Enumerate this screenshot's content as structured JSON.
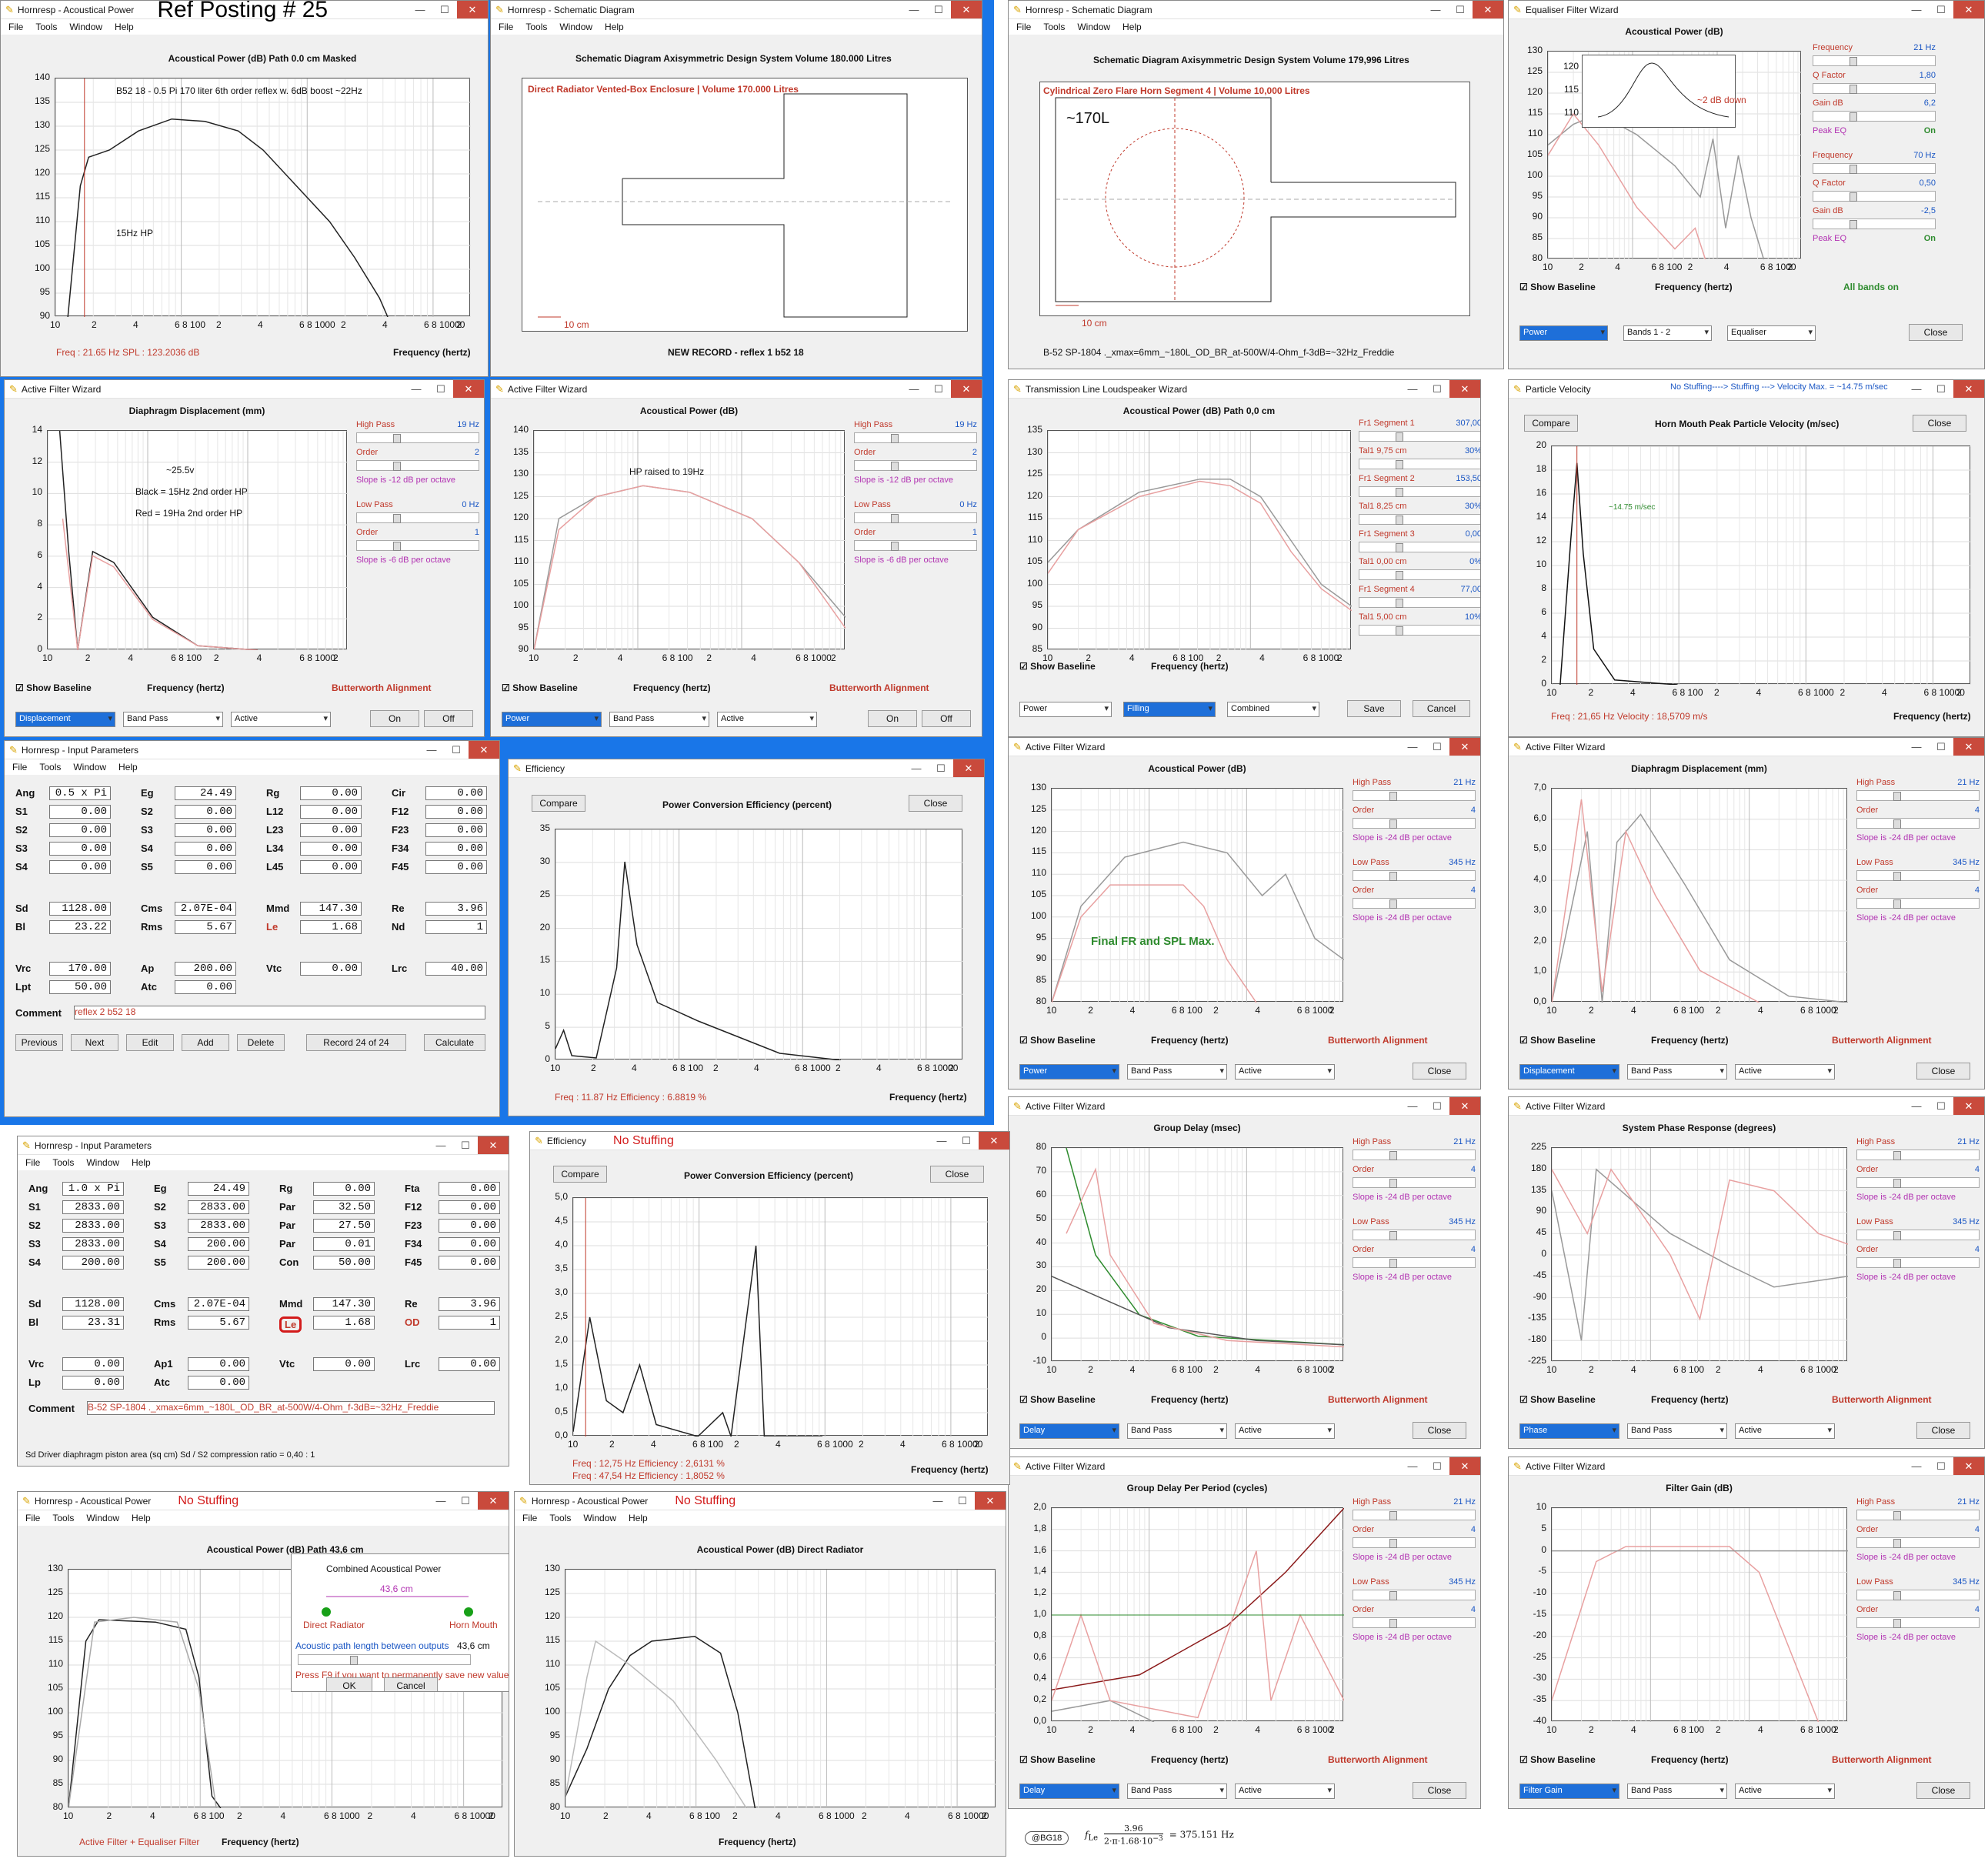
{
  "w1": {
    "title": "Hornresp - Acoustical Power",
    "ref": "Ref Posting # 25",
    "menu": [
      "File",
      "Tools",
      "Window",
      "Help"
    ],
    "header": "Acoustical Power (dB)   Path 0.0 cm   Masked",
    "yticks": [
      "140",
      "135",
      "130",
      "125",
      "120",
      "115",
      "110",
      "105",
      "100",
      "95",
      "90"
    ],
    "xticks": [
      "10",
      "2",
      "4",
      "6 8 100",
      "2",
      "4",
      "6 8 1000",
      "2",
      "4",
      "6 8 10000",
      "2"
    ],
    "note1": "B52 18 - 0.5 Pi 170 liter 6th  order  reflex w. 6dB boost ~22Hz",
    "note2": "15Hz HP",
    "status": "Freq : 21.65 Hz    SPL : 123.2036 dB",
    "xlabel": "Frequency (hertz)"
  },
  "w2": {
    "title": "Hornresp - Schematic Diagram",
    "menu": [
      "File",
      "Tools",
      "Window",
      "Help"
    ],
    "header": "Schematic Diagram   Axisymmetric Design   System Volume 180.000 Litres",
    "sub": "Direct Radiator Vented-Box Enclosure | Volume 170.000 Litres",
    "scale": "10 cm",
    "footer": "NEW RECORD - reflex 1  b52 18"
  },
  "w3": {
    "title": "Hornresp - Schematic Diagram",
    "menu": [
      "File",
      "Tools",
      "Window",
      "Help"
    ],
    "header": "Schematic Diagram   Axisymmetric Design   System Volume 179,996 Litres",
    "sub": "Cylindrical Zero Flare Horn Segment 4 | Volume 10,000 Litres",
    "note": "~170L",
    "scale": "10 cm",
    "footer": "B-52 SP-1804 ._xmax=6mm_~180L_OD_BR_at-500W/4-Ohm_f-3dB=~32Hz_Freddie"
  },
  "w4": {
    "title": "Equaliser Filter Wizard",
    "header": "Acoustical Power (dB)",
    "yticks": [
      "130",
      "125",
      "120",
      "115",
      "110",
      "105",
      "100",
      "95",
      "90",
      "85",
      "80"
    ],
    "xticks": [
      "10",
      "2",
      "4",
      "6 8 100",
      "2",
      "4",
      "6 8 1000",
      "2"
    ],
    "inset_y": [
      "120",
      "115",
      "110"
    ],
    "inset_note": "~2 dB down",
    "params": [
      [
        "Frequency",
        "21 Hz"
      ],
      [
        "Q Factor",
        "1,80"
      ],
      [
        "Gain  dB",
        "6,2"
      ],
      [
        "Frequency",
        "70 Hz"
      ],
      [
        "Q Factor",
        "0,50"
      ],
      [
        "Gain  dB",
        "-2,5"
      ]
    ],
    "peak1": "Peak EQ",
    "on1": "On",
    "peak2": "Peak EQ",
    "on2": "On",
    "allbands": "All bands on",
    "baseline": "Show Baseline",
    "xlabel": "Frequency (hertz)",
    "sel": [
      "Power",
      "Bands 1 - 2",
      "Equaliser"
    ],
    "close": "Close"
  },
  "w5": {
    "title": "Active Filter Wizard",
    "header": "Diaphragm Displacement (mm)",
    "yticks": [
      "14",
      "12",
      "10",
      "8",
      "6",
      "4",
      "2",
      "0"
    ],
    "xticks": [
      "10",
      "2",
      "4",
      "6 8 100",
      "2",
      "4",
      "6 8 1000",
      "2"
    ],
    "notes": [
      "~25.5v",
      "Black = 15Hz 2nd order HP",
      "Red = 19Ha 2nd order HP"
    ],
    "hp": [
      "High Pass",
      "19 Hz",
      "Order",
      "2",
      "Slope is -12 dB per octave"
    ],
    "lp": [
      "Low Pass",
      "0 Hz",
      "Order",
      "1",
      "Slope is -6 dB per octave"
    ],
    "baseline": "Show Baseline",
    "xlabel": "Frequency (hertz)",
    "align": "Butterworth Alignment",
    "sel": [
      "Displacement",
      "Band Pass",
      "Active"
    ],
    "on": "On",
    "off": "Off"
  },
  "w6": {
    "title": "Active Filter Wizard",
    "header": "Acoustical Power (dB)",
    "yticks": [
      "140",
      "135",
      "130",
      "125",
      "120",
      "115",
      "110",
      "105",
      "100",
      "95",
      "90"
    ],
    "xticks": [
      "10",
      "2",
      "4",
      "6 8 100",
      "2",
      "4",
      "6 8 1000",
      "2"
    ],
    "note": "HP raised to 19Hz",
    "hp": [
      "High Pass",
      "19 Hz",
      "Order",
      "2",
      "Slope is -12 dB per octave"
    ],
    "lp": [
      "Low Pass",
      "0 Hz",
      "Order",
      "1",
      "Slope is -6 dB per octave"
    ],
    "baseline": "Show Baseline",
    "xlabel": "Frequency (hertz)",
    "align": "Butterworth Alignment",
    "sel": [
      "Power",
      "Band Pass",
      "Active"
    ],
    "on": "On",
    "off": "Off"
  },
  "w7": {
    "title": "Transmission Line Loudspeaker Wizard",
    "header": "Acoustical Power (dB)   Path 0,0 cm",
    "yticks": [
      "135",
      "130",
      "125",
      "120",
      "115",
      "110",
      "105",
      "100",
      "95",
      "90",
      "85"
    ],
    "xticks": [
      "10",
      "2",
      "4",
      "6 8 100",
      "2",
      "4",
      "6 8 1000",
      "2"
    ],
    "params": [
      [
        "Fr1  Segment 1",
        "307,00"
      ],
      [
        "Tal1  9,75 cm",
        "30%"
      ],
      [
        "Fr1  Segment 2",
        "153,50"
      ],
      [
        "Tal1  8,25 cm",
        "30%"
      ],
      [
        "Fr1  Segment 3",
        "0,00"
      ],
      [
        "Tal1  0,00 cm",
        "0%"
      ],
      [
        "Fr1  Segment 4",
        "77,00"
      ],
      [
        "Tal1  5,00 cm",
        "10%"
      ]
    ],
    "baseline": "Show Baseline",
    "xlabel": "Frequency (hertz)",
    "sel": [
      "Power",
      "Filling",
      "Combined"
    ],
    "save": "Save",
    "cancel": "Cancel"
  },
  "w8": {
    "title": "Particle Velocity",
    "note_top": "No Stuffing----> Stuffing ---> Velocity Max. = ~14.75 m/sec",
    "compare": "Compare",
    "header": "Horn Mouth Peak Particle Velocity (m/sec)",
    "close": "Close",
    "yticks": [
      "20",
      "18",
      "16",
      "14",
      "12",
      "10",
      "8",
      "6",
      "4",
      "2",
      "0"
    ],
    "xticks": [
      "10",
      "2",
      "4",
      "6 8 100",
      "2",
      "4",
      "6 8 1000",
      "2",
      "4",
      "6 8 10000",
      "2"
    ],
    "note": "~14.75 m/sec",
    "status": "Freq : 21,65 Hz    Velocity : 18,5709 m/s",
    "xlabel": "Frequency (hertz)"
  },
  "w9": {
    "title": "Hornresp - Input Parameters",
    "menu": [
      "File",
      "Tools",
      "Window",
      "Help"
    ],
    "fields": [
      [
        "Ang",
        "0.5 x Pi"
      ],
      [
        "Eg",
        "24.49"
      ],
      [
        "Rg",
        "0.00"
      ],
      [
        "Cir",
        "0.00"
      ],
      [
        "S1",
        "0.00"
      ],
      [
        "S2",
        "0.00"
      ],
      [
        "L12",
        "0.00"
      ],
      [
        "F12",
        "0.00"
      ],
      [
        "S2",
        "0.00"
      ],
      [
        "S3",
        "0.00"
      ],
      [
        "L23",
        "0.00"
      ],
      [
        "F23",
        "0.00"
      ],
      [
        "S3",
        "0.00"
      ],
      [
        "S4",
        "0.00"
      ],
      [
        "L34",
        "0.00"
      ],
      [
        "F34",
        "0.00"
      ],
      [
        "S4",
        "0.00"
      ],
      [
        "S5",
        "0.00"
      ],
      [
        "L45",
        "0.00"
      ],
      [
        "F45",
        "0.00"
      ],
      [
        "Sd",
        "1128.00"
      ],
      [
        "Cms",
        "2.07E-04"
      ],
      [
        "Mmd",
        "147.30"
      ],
      [
        "Re",
        "3.96"
      ],
      [
        "Bl",
        "23.22"
      ],
      [
        "Rms",
        "5.67"
      ],
      [
        "Le",
        "1.68"
      ],
      [
        "Nd",
        "1"
      ],
      [
        "Vrc",
        "170.00"
      ],
      [
        "Ap",
        "200.00"
      ],
      [
        "Vtc",
        "0.00"
      ],
      [
        "Lrc",
        "40.00"
      ],
      [
        "Lpt",
        "50.00"
      ],
      [
        "Atc",
        "0.00"
      ]
    ],
    "comment_label": "Comment",
    "comment": "reflex 2  b52 18",
    "buttons": [
      "Previous",
      "Next",
      "Edit",
      "Add",
      "Delete",
      "Record 24 of 24",
      "Calculate"
    ]
  },
  "w10": {
    "title": "Efficiency",
    "compare": "Compare",
    "header": "Power Conversion Efficiency (percent)",
    "close": "Close",
    "yticks": [
      "35",
      "30",
      "25",
      "20",
      "15",
      "10",
      "5",
      "0"
    ],
    "xticks": [
      "10",
      "2",
      "4",
      "6 8 100",
      "2",
      "4",
      "6 8 1000",
      "2",
      "4",
      "6 8 10000",
      "2"
    ],
    "status": "Freq : 11.87 Hz    Efficiency : 6.8819 %",
    "xlabel": "Frequency (hertz)"
  },
  "w11": {
    "title": "Active Filter Wizard",
    "header": "Acoustical Power (dB)",
    "yticks": [
      "130",
      "125",
      "120",
      "115",
      "110",
      "105",
      "100",
      "95",
      "90",
      "85",
      "80"
    ],
    "xticks": [
      "10",
      "2",
      "4",
      "6 8 100",
      "2",
      "4",
      "6 8 1000",
      "2"
    ],
    "note": "Final FR and SPL Max.",
    "hp": [
      "High Pass",
      "21 Hz",
      "Order",
      "4",
      "Slope is -24 dB per octave"
    ],
    "lp": [
      "Low Pass",
      "345 Hz",
      "Order",
      "4",
      "Slope is -24 dB per octave"
    ],
    "baseline": "Show Baseline",
    "xlabel": "Frequency (hertz)",
    "align": "Butterworth Alignment",
    "sel": [
      "Power",
      "Band Pass",
      "Active"
    ],
    "close": "Close"
  },
  "w12": {
    "title": "Active Filter Wizard",
    "header": "Diaphragm Displacement (mm)",
    "yticks": [
      "7,0",
      "6,0",
      "5,0",
      "4,0",
      "3,0",
      "2,0",
      "1,0",
      "0,0"
    ],
    "xticks": [
      "10",
      "2",
      "4",
      "6 8 100",
      "2",
      "4",
      "6 8 1000",
      "2"
    ],
    "hp": [
      "High Pass",
      "21 Hz",
      "Order",
      "4",
      "Slope is -24 dB per octave"
    ],
    "lp": [
      "Low Pass",
      "345 Hz",
      "Order",
      "4",
      "Slope is -24 dB per octave"
    ],
    "baseline": "Show Baseline",
    "xlabel": "Frequency (hertz)",
    "align": "Butterworth Alignment",
    "sel": [
      "Displacement",
      "Band Pass",
      "Active"
    ],
    "close": "Close"
  },
  "w13": {
    "title": "Hornresp - Input Parameters",
    "menu": [
      "File",
      "Tools",
      "Window",
      "Help"
    ],
    "fields": [
      [
        "Ang",
        "1.0 x Pi"
      ],
      [
        "Eg",
        "24.49"
      ],
      [
        "Rg",
        "0.00"
      ],
      [
        "Fta",
        "0.00"
      ],
      [
        "S1",
        "2833.00"
      ],
      [
        "S2",
        "2833.00"
      ],
      [
        "Par",
        "32.50"
      ],
      [
        "F12",
        "0.00"
      ],
      [
        "S2",
        "2833.00"
      ],
      [
        "S3",
        "2833.00"
      ],
      [
        "Par",
        "27.50"
      ],
      [
        "F23",
        "0.00"
      ],
      [
        "S3",
        "2833.00"
      ],
      [
        "S4",
        "200.00"
      ],
      [
        "Par",
        "0.01"
      ],
      [
        "F34",
        "0.00"
      ],
      [
        "S4",
        "200.00"
      ],
      [
        "S5",
        "200.00"
      ],
      [
        "Con",
        "50.00"
      ],
      [
        "F45",
        "0.00"
      ],
      [
        "Sd",
        "1128.00"
      ],
      [
        "Cms",
        "2.07E-04"
      ],
      [
        "Mmd",
        "147.30"
      ],
      [
        "Re",
        "3.96"
      ],
      [
        "Bl",
        "23.31"
      ],
      [
        "Rms",
        "5.67"
      ],
      [
        "Le",
        "1.68"
      ],
      [
        "OD",
        "1"
      ],
      [
        "Vrc",
        "0.00"
      ],
      [
        "Ap1",
        "0.00"
      ],
      [
        "Vtc",
        "0.00"
      ],
      [
        "Lrc",
        "0.00"
      ],
      [
        "Lp",
        "0.00"
      ],
      [
        "Atc",
        "0.00"
      ]
    ],
    "comment_label": "Comment",
    "comment": "B-52 SP-1804 ._xmax=6mm_~180L_OD_BR_at-500W/4-Ohm_f-3dB=~32Hz_Freddie",
    "statusbar": "Sd   Driver diaphragm piston area  (sq cm)   Sd / S2 compression ratio = 0,40 : 1"
  },
  "w14": {
    "title": "Efficiency",
    "nostuff": "No Stuffing",
    "compare": "Compare",
    "header": "Power Conversion Efficiency (percent)",
    "close": "Close",
    "yticks": [
      "5,0",
      "4,5",
      "4,0",
      "3,5",
      "3,0",
      "2,5",
      "2,0",
      "1,5",
      "1,0",
      "0,5",
      "0,0"
    ],
    "xticks": [
      "10",
      "2",
      "4",
      "6 8 100",
      "2",
      "4",
      "6 8 1000",
      "2",
      "4",
      "6 8 10000",
      "2"
    ],
    "status1": "Freq : 12,75 Hz    Efficiency : 2,6131 %",
    "status2": "Freq : 47,54 Hz    Efficiency : 1,8052 %",
    "xlabel": "Frequency (hertz)"
  },
  "w15": {
    "title": "Active Filter Wizard",
    "header": "Group Delay (msec)",
    "yticks": [
      "80",
      "70",
      "60",
      "50",
      "40",
      "30",
      "20",
      "10",
      "0",
      "-10"
    ],
    "xticks": [
      "10",
      "2",
      "4",
      "6 8 100",
      "2",
      "4",
      "6 8 1000",
      "2"
    ],
    "hp": [
      "High Pass",
      "21 Hz",
      "Order",
      "4",
      "Slope is -24 dB per octave"
    ],
    "lp": [
      "Low Pass",
      "345 Hz",
      "Order",
      "4",
      "Slope is -24 dB per octave"
    ],
    "baseline": "Show Baseline",
    "xlabel": "Frequency (hertz)",
    "align": "Butterworth Alignment",
    "sel": [
      "Delay",
      "Band Pass",
      "Active"
    ],
    "close": "Close"
  },
  "w16": {
    "title": "Active Filter Wizard",
    "header": "System Phase Response (degrees)",
    "yticks": [
      "225",
      "180",
      "135",
      "90",
      "45",
      "0",
      "-45",
      "-90",
      "-135",
      "-180",
      "-225"
    ],
    "xticks": [
      "10",
      "2",
      "4",
      "6 8 100",
      "2",
      "4",
      "6 8 1000",
      "2"
    ],
    "hp": [
      "High Pass",
      "21 Hz",
      "Order",
      "4",
      "Slope is -24 dB per octave"
    ],
    "lp": [
      "Low Pass",
      "345 Hz",
      "Order",
      "4",
      "Slope is -24 dB per octave"
    ],
    "baseline": "Show Baseline",
    "xlabel": "Frequency (hertz)",
    "align": "Butterworth Alignment",
    "sel": [
      "Phase",
      "Band Pass",
      "Active"
    ],
    "close": "Close"
  },
  "w17": {
    "title": "Hornresp - Acoustical Power",
    "nostuff": "No Stuffing",
    "menu": [
      "File",
      "Tools",
      "Window",
      "Help"
    ],
    "header": "Acoustical Power (dB)   Path 43,6 cm",
    "yticks": [
      "130",
      "125",
      "120",
      "115",
      "110",
      "105",
      "100",
      "95",
      "90",
      "85",
      "80"
    ],
    "xticks": [
      "10",
      "2",
      "4",
      "6 8 100",
      "2",
      "4",
      "6 8 1000",
      "2",
      "4",
      "6 8 10000",
      "2"
    ],
    "status": "Active Filter + Equaliser Filter",
    "xlabel": "Frequency (hertz)",
    "dialog": {
      "title": "Combined Acoustical Power",
      "dist": "43,6 cm",
      "dr": "Direct Radiator",
      "hm": "Horn Mouth",
      "path_label": "Acoustic path length between outputs",
      "path_val": "43,6 cm",
      "hint": "Press F9 if you want to permanently save new value.",
      "ok": "OK",
      "cancel": "Cancel"
    }
  },
  "w18": {
    "title": "Hornresp - Acoustical Power",
    "nostuff": "No Stuffing",
    "menu": [
      "File",
      "Tools",
      "Window",
      "Help"
    ],
    "header": "Acoustical Power (dB)   Direct Radiator",
    "yticks": [
      "130",
      "125",
      "120",
      "115",
      "110",
      "105",
      "100",
      "95",
      "90",
      "85",
      "80"
    ],
    "xticks": [
      "10",
      "2",
      "4",
      "6 8 100",
      "2",
      "4",
      "6 8 1000",
      "2",
      "4",
      "6 8 10000",
      "2"
    ],
    "xlabel": "Frequency (hertz)"
  },
  "w19": {
    "title": "Active Filter Wizard",
    "header": "Group Delay Per Period (cycles)",
    "yticks": [
      "2,0",
      "1,8",
      "1,6",
      "1,4",
      "1,2",
      "1,0",
      "0,8",
      "0,6",
      "0,4",
      "0,2",
      "0,0"
    ],
    "xticks": [
      "10",
      "2",
      "4",
      "6 8 100",
      "2",
      "4",
      "6 8 1000",
      "2"
    ],
    "hp": [
      "High Pass",
      "21 Hz",
      "Order",
      "4",
      "Slope is -24 dB per octave"
    ],
    "lp": [
      "Low Pass",
      "345 Hz",
      "Order",
      "4",
      "Slope is -24 dB per octave"
    ],
    "baseline": "Show Baseline",
    "xlabel": "Frequency (hertz)",
    "align": "Butterworth Alignment",
    "sel": [
      "Delay",
      "Band Pass",
      "Active"
    ],
    "close": "Close"
  },
  "w20": {
    "title": "Active Filter Wizard",
    "header": "Filter Gain (dB)",
    "yticks": [
      "10",
      "5",
      "0",
      "-5",
      "-10",
      "-15",
      "-20",
      "-25",
      "-30",
      "-35",
      "-40"
    ],
    "xticks": [
      "10",
      "2",
      "4",
      "6 8 100",
      "2",
      "4",
      "6 8 1000",
      "2"
    ],
    "hp": [
      "High Pass",
      "21 Hz",
      "Order",
      "4",
      "Slope is -24 dB per octave"
    ],
    "lp": [
      "Low Pass",
      "345 Hz",
      "Order",
      "4",
      "Slope is -24 dB per octave"
    ],
    "baseline": "Show Baseline",
    "xlabel": "Frequency (hertz)",
    "align": "Butterworth Alignment",
    "sel": [
      "Filter Gain",
      "Band Pass",
      "Active"
    ],
    "close": "Close"
  },
  "footer": {
    "badge": "@BG18",
    "formula_lhs": "f",
    "formula_sub": "Le",
    "formula_num": "3.96",
    "formula_den": "2·π·1.68·10",
    "formula_exp": "−3",
    "formula_rhs": "= 375.151   Hz"
  },
  "colors": {
    "accent": "#1976e8",
    "red_curve": "#e8a0a0",
    "dark_curve": "#222",
    "status_red": "#c0392b"
  }
}
